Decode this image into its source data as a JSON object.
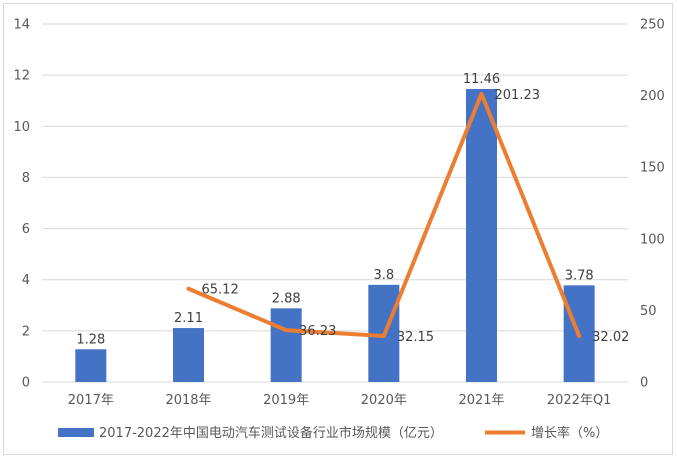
{
  "chart_data": {
    "type": "bar",
    "categories": [
      "2017年",
      "2018年",
      "2019年",
      "2020年",
      "2021年",
      "2022年Q1"
    ],
    "series": [
      {
        "name": "2017-2022年中国电动汽车测试设备行业市场规模（亿元）",
        "type": "bar",
        "axis": "left",
        "color": "#4472C4",
        "values": [
          1.28,
          2.11,
          2.88,
          3.8,
          11.46,
          3.78
        ],
        "labels": [
          "1.28",
          "2.11",
          "2.88",
          "3.8",
          "11.46",
          "3.78"
        ]
      },
      {
        "name": "增长率（%）",
        "type": "line",
        "axis": "right",
        "color": "#ED7D31",
        "values": [
          null,
          65.12,
          36.23,
          32.15,
          201.23,
          32.02
        ],
        "labels": [
          "",
          "65.12",
          "36.23",
          "32.15",
          "201.23",
          "32.02"
        ]
      }
    ],
    "y_left": {
      "min": 0,
      "max": 14,
      "ticks": [
        "0",
        "2",
        "4",
        "6",
        "8",
        "10",
        "12",
        "14"
      ]
    },
    "y_right": {
      "min": 0,
      "max": 250,
      "ticks": [
        "0",
        "50",
        "100",
        "150",
        "200",
        "250"
      ]
    },
    "grid": true,
    "legend": "bottom"
  }
}
